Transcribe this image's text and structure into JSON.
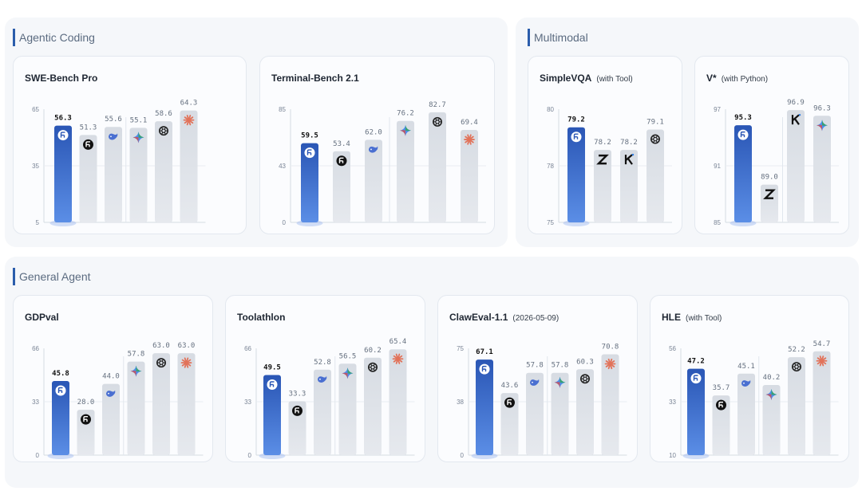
{
  "sections": [
    {
      "title": "Agentic Coding"
    },
    {
      "title": "Multimodal"
    },
    {
      "title": "General Agent"
    }
  ],
  "colors": {
    "highlight_top": "#2a56b5",
    "highlight_bottom": "#5b8ee6",
    "gray_top": "#d7dce3",
    "gray_bottom": "#e6e9ee"
  },
  "chart_data": [
    {
      "type": "bar",
      "title": "SWE-Bench Pro",
      "subtitle": "",
      "yticks": [
        "65",
        "35",
        "5"
      ],
      "ylim": [
        5,
        65
      ],
      "values": [
        56.3,
        51.3,
        55.6,
        55.1,
        58.6,
        64.3
      ],
      "labels": [
        "56.3",
        "51.3",
        "55.6",
        "55.1",
        "58.6",
        "64.3"
      ],
      "icons": [
        "brand-a-icon",
        "brand-b-icon",
        "whale-icon",
        "sparkle-icon",
        "openai-icon",
        "starburst-icon"
      ],
      "highlight": 0,
      "dividers": [
        2
      ]
    },
    {
      "type": "bar",
      "title": "Terminal-Bench 2.1",
      "subtitle": "",
      "yticks": [
        "85",
        "43",
        "0"
      ],
      "ylim": [
        0,
        85
      ],
      "values": [
        59.5,
        53.4,
        62.0,
        76.2,
        82.7,
        69.4
      ],
      "labels": [
        "59.5",
        "53.4",
        "62.0",
        "76.2",
        "82.7",
        "69.4"
      ],
      "icons": [
        "brand-a-icon",
        "brand-b-icon",
        "whale-icon",
        "sparkle-icon",
        "openai-icon",
        "starburst-icon"
      ],
      "highlight": 0,
      "dividers": [
        2
      ]
    },
    {
      "type": "bar",
      "title": "SimpleVQA",
      "subtitle": "(with Tool)",
      "yticks": [
        "80",
        "78",
        "75"
      ],
      "ylim": [
        75,
        80
      ],
      "values": [
        79.2,
        78.2,
        78.2,
        79.1
      ],
      "labels": [
        "79.2",
        "78.2",
        "78.2",
        "79.1"
      ],
      "icons": [
        "brand-a-icon",
        "z-icon",
        "k-icon",
        "openai-icon"
      ],
      "highlight": 0,
      "dividers": []
    },
    {
      "type": "bar",
      "title": "V*",
      "subtitle": "(with Python)",
      "yticks": [
        "97",
        "91",
        "85"
      ],
      "ylim": [
        85,
        97
      ],
      "values": [
        95.3,
        89.0,
        96.9,
        96.3
      ],
      "labels": [
        "95.3",
        "89.0",
        "96.9",
        "96.3"
      ],
      "icons": [
        "brand-a-icon",
        "z-icon",
        "k-icon",
        "sparkle-icon"
      ],
      "highlight": 0,
      "dividers": [
        1
      ]
    },
    {
      "type": "bar",
      "title": "GDPval",
      "subtitle": "",
      "yticks": [
        "66",
        "33",
        "0"
      ],
      "ylim": [
        0,
        66
      ],
      "values": [
        45.8,
        28.0,
        44.0,
        57.8,
        63.0,
        63.0
      ],
      "labels": [
        "45.8",
        "28.0",
        "44.0",
        "57.8",
        "63.0",
        "63.0"
      ],
      "icons": [
        "brand-a-icon",
        "brand-b-icon",
        "whale-icon",
        "sparkle-icon",
        "openai-icon",
        "starburst-icon"
      ],
      "highlight": 0,
      "dividers": [
        2
      ]
    },
    {
      "type": "bar",
      "title": "Toolathlon",
      "subtitle": "",
      "yticks": [
        "66",
        "33",
        "0"
      ],
      "ylim": [
        0,
        66
      ],
      "values": [
        49.5,
        33.3,
        52.8,
        56.5,
        60.2,
        65.4
      ],
      "labels": [
        "49.5",
        "33.3",
        "52.8",
        "56.5",
        "60.2",
        "65.4"
      ],
      "icons": [
        "brand-a-icon",
        "brand-b-icon",
        "whale-icon",
        "sparkle-icon",
        "openai-icon",
        "starburst-icon"
      ],
      "highlight": 0,
      "dividers": [
        2
      ]
    },
    {
      "type": "bar",
      "title": "ClawEval-1.1",
      "subtitle": "(2026-05-09)",
      "yticks": [
        "75",
        "38",
        "0"
      ],
      "ylim": [
        0,
        75
      ],
      "values": [
        67.1,
        43.6,
        57.8,
        57.8,
        60.3,
        70.8
      ],
      "labels": [
        "67.1",
        "43.6",
        "57.8",
        "57.8",
        "60.3",
        "70.8"
      ],
      "icons": [
        "brand-a-icon",
        "brand-b-icon",
        "whale-icon",
        "sparkle-icon",
        "openai-icon",
        "starburst-icon"
      ],
      "highlight": 0,
      "dividers": [
        2
      ]
    },
    {
      "type": "bar",
      "title": "HLE",
      "subtitle": "(with Tool)",
      "yticks": [
        "56",
        "33",
        "10"
      ],
      "ylim": [
        10,
        56
      ],
      "values": [
        47.2,
        35.7,
        45.1,
        40.2,
        52.2,
        54.7
      ],
      "labels": [
        "47.2",
        "35.7",
        "45.1",
        "40.2",
        "52.2",
        "54.7"
      ],
      "icons": [
        "brand-a-icon",
        "brand-b-icon",
        "whale-icon",
        "sparkle-icon",
        "openai-icon",
        "starburst-icon"
      ],
      "highlight": 0,
      "dividers": [
        2
      ]
    }
  ]
}
